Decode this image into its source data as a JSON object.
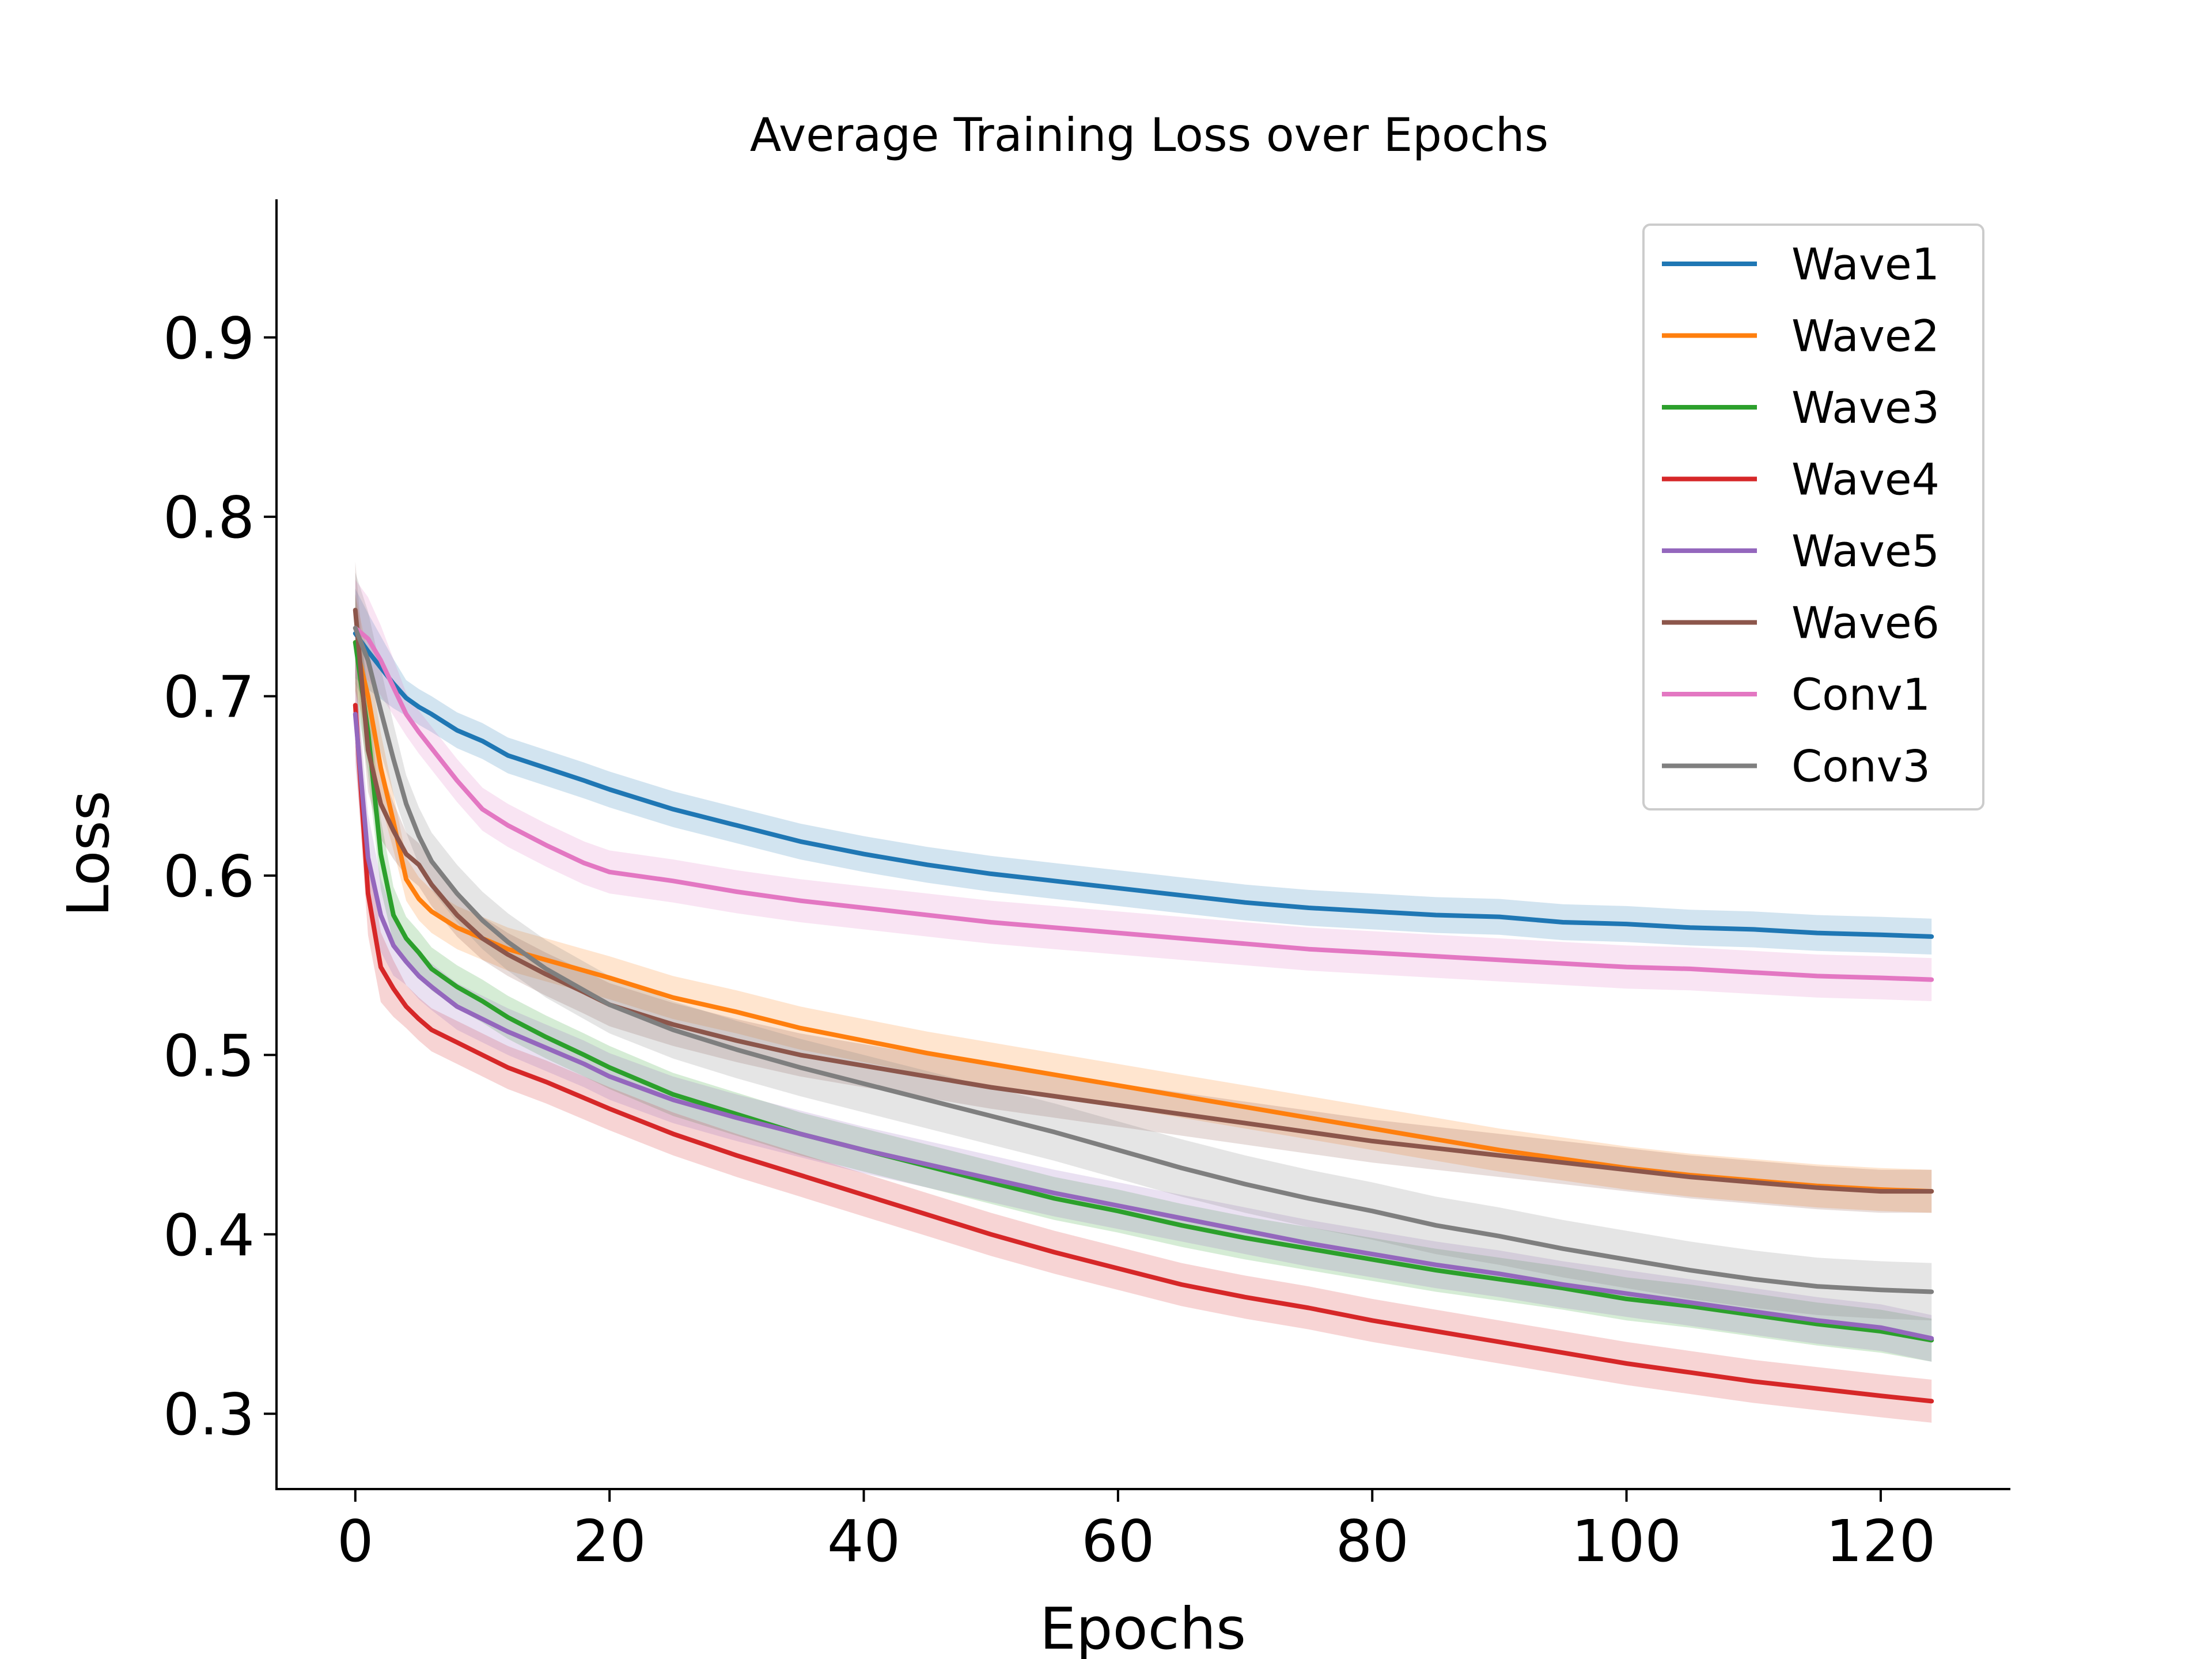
{
  "chart_data": {
    "type": "line",
    "title": "Average Training Loss over Epochs",
    "xlabel": "Epochs",
    "ylabel": "Loss",
    "xlim": [
      -6.2,
      130.2
    ],
    "ylim": [
      0.258,
      0.977
    ],
    "xticks": [
      0,
      20,
      40,
      60,
      80,
      100,
      120
    ],
    "yticks": [
      0.3,
      0.4,
      0.5,
      0.6,
      0.7,
      0.8,
      0.9
    ],
    "xtick_labels": [
      "0",
      "20",
      "40",
      "60",
      "80",
      "100",
      "120"
    ],
    "ytick_labels": [
      "0.3",
      "0.4",
      "0.5",
      "0.6",
      "0.7",
      "0.8",
      "0.9"
    ],
    "grid": false,
    "legend_position": "top-right",
    "shaded_band": "variation across runs",
    "x": [
      0,
      1,
      2,
      3,
      4,
      5,
      6,
      8,
      10,
      12,
      15,
      18,
      20,
      25,
      30,
      35,
      40,
      45,
      50,
      55,
      60,
      65,
      70,
      75,
      80,
      85,
      90,
      95,
      100,
      105,
      110,
      115,
      120,
      124
    ],
    "series": [
      {
        "name": "Wave1",
        "color": "#1f77b4",
        "values": [
          0.735,
          0.725,
          0.716,
          0.707,
          0.699,
          0.694,
          0.69,
          0.681,
          0.675,
          0.667,
          0.66,
          0.653,
          0.648,
          0.637,
          0.628,
          0.619,
          0.612,
          0.606,
          0.601,
          0.597,
          0.593,
          0.589,
          0.585,
          0.582,
          0.58,
          0.578,
          0.577,
          0.574,
          0.573,
          0.571,
          0.57,
          0.568,
          0.567,
          0.566
        ],
        "band": 0.01
      },
      {
        "name": "Wave2",
        "color": "#ff7f0e",
        "values": [
          0.73,
          0.7,
          0.66,
          0.63,
          0.598,
          0.587,
          0.58,
          0.571,
          0.565,
          0.559,
          0.553,
          0.547,
          0.543,
          0.532,
          0.524,
          0.515,
          0.508,
          0.501,
          0.495,
          0.489,
          0.483,
          0.477,
          0.471,
          0.465,
          0.459,
          0.453,
          0.447,
          0.442,
          0.437,
          0.433,
          0.43,
          0.427,
          0.425,
          0.424
        ],
        "band": 0.012
      },
      {
        "name": "Wave3",
        "color": "#2ca02c",
        "values": [
          0.73,
          0.68,
          0.612,
          0.578,
          0.565,
          0.557,
          0.548,
          0.538,
          0.53,
          0.521,
          0.51,
          0.5,
          0.493,
          0.478,
          0.467,
          0.456,
          0.447,
          0.438,
          0.429,
          0.42,
          0.413,
          0.405,
          0.398,
          0.392,
          0.386,
          0.38,
          0.375,
          0.37,
          0.364,
          0.36,
          0.355,
          0.35,
          0.346,
          0.341
        ],
        "band": 0.012
      },
      {
        "name": "Wave4",
        "color": "#d62728",
        "values": [
          0.695,
          0.59,
          0.549,
          0.537,
          0.527,
          0.52,
          0.514,
          0.507,
          0.5,
          0.493,
          0.485,
          0.476,
          0.47,
          0.456,
          0.444,
          0.433,
          0.422,
          0.411,
          0.4,
          0.39,
          0.381,
          0.372,
          0.365,
          0.359,
          0.352,
          0.346,
          0.34,
          0.334,
          0.328,
          0.323,
          0.318,
          0.314,
          0.31,
          0.307
        ],
        "band": 0.012
      },
      {
        "name": "Wave5",
        "color": "#9467bd",
        "values": [
          0.69,
          0.61,
          0.578,
          0.561,
          0.552,
          0.544,
          0.538,
          0.527,
          0.52,
          0.513,
          0.504,
          0.495,
          0.488,
          0.475,
          0.465,
          0.456,
          0.447,
          0.439,
          0.431,
          0.423,
          0.416,
          0.409,
          0.402,
          0.395,
          0.389,
          0.383,
          0.378,
          0.372,
          0.367,
          0.362,
          0.357,
          0.352,
          0.348,
          0.342
        ],
        "band": 0.013
      },
      {
        "name": "Wave6",
        "color": "#8c564b",
        "values": [
          0.748,
          0.67,
          0.64,
          0.625,
          0.612,
          0.606,
          0.595,
          0.578,
          0.565,
          0.556,
          0.545,
          0.535,
          0.528,
          0.517,
          0.508,
          0.5,
          0.494,
          0.488,
          0.482,
          0.477,
          0.472,
          0.467,
          0.462,
          0.457,
          0.452,
          0.448,
          0.444,
          0.44,
          0.436,
          0.432,
          0.429,
          0.426,
          0.424,
          0.424
        ],
        "band": 0.012
      },
      {
        "name": "Conv1",
        "color": "#e377c2",
        "values": [
          0.738,
          0.732,
          0.72,
          0.705,
          0.69,
          0.68,
          0.671,
          0.653,
          0.637,
          0.628,
          0.617,
          0.607,
          0.602,
          0.597,
          0.591,
          0.586,
          0.582,
          0.578,
          0.574,
          0.571,
          0.568,
          0.565,
          0.562,
          0.559,
          0.557,
          0.555,
          0.553,
          0.551,
          0.549,
          0.548,
          0.546,
          0.544,
          0.543,
          0.542
        ],
        "band": 0.012
      },
      {
        "name": "Conv3",
        "color": "#7f7f7f",
        "values": [
          0.738,
          0.72,
          0.692,
          0.665,
          0.64,
          0.622,
          0.608,
          0.59,
          0.575,
          0.563,
          0.548,
          0.536,
          0.528,
          0.514,
          0.503,
          0.493,
          0.484,
          0.475,
          0.466,
          0.457,
          0.447,
          0.437,
          0.428,
          0.42,
          0.413,
          0.405,
          0.399,
          0.392,
          0.386,
          0.38,
          0.375,
          0.371,
          0.369,
          0.368
        ],
        "band": 0.016
      }
    ]
  }
}
